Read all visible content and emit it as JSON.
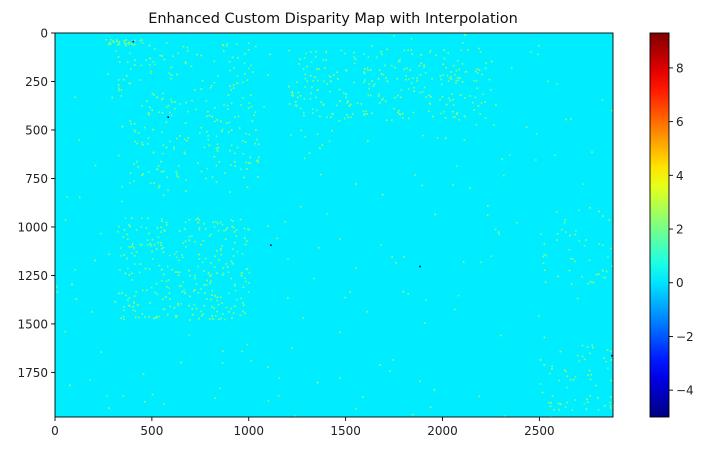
{
  "chart_data": {
    "type": "heatmap",
    "title": "Enhanced Custom Disparity Map with Interpolation",
    "xlabel": "",
    "ylabel": "",
    "x_range": [
      0,
      2880
    ],
    "y_range": [
      1980,
      0
    ],
    "x_ticks": [
      0,
      500,
      1000,
      1500,
      2000,
      2500
    ],
    "y_ticks": [
      0,
      250,
      500,
      750,
      1000,
      1250,
      1500,
      1750
    ],
    "colormap": "jet",
    "color_range": [
      -5.0,
      9.3
    ],
    "colorbar_ticks": [
      -4,
      -2,
      0,
      2,
      4,
      6,
      8
    ],
    "background_value": 0.1,
    "grid": false,
    "speckle_value": 2.2,
    "speckle_clusters": [
      {
        "region": "upper-left",
        "x": [
          320,
          1050
        ],
        "y": [
          40,
          820
        ],
        "count": 240
      },
      {
        "region": "top band left",
        "x": [
          260,
          460
        ],
        "y": [
          30,
          60
        ],
        "count": 30
      },
      {
        "region": "upper-center",
        "x": [
          1200,
          2250
        ],
        "y": [
          80,
          450
        ],
        "count": 260
      },
      {
        "region": "lower-left",
        "x": [
          320,
          1000
        ],
        "y": [
          950,
          1480
        ],
        "count": 300
      },
      {
        "region": "right edge",
        "x": [
          2480,
          2880
        ],
        "y": [
          880,
          1300
        ],
        "count": 40
      },
      {
        "region": "bottom-right",
        "x": [
          2500,
          2880
        ],
        "y": [
          1600,
          1950
        ],
        "count": 60
      },
      {
        "region": "scattered",
        "x": [
          0,
          2880
        ],
        "y": [
          0,
          1980
        ],
        "count": 220
      }
    ],
    "dark_points": [
      {
        "x": 580,
        "y": 430,
        "value": -4.5
      },
      {
        "x": 1110,
        "y": 1090,
        "value": -4.5
      },
      {
        "x": 1880,
        "y": 1200,
        "value": -4.5
      },
      {
        "x": 2870,
        "y": 1660,
        "value": -4.5
      },
      {
        "x": 400,
        "y": 40,
        "value": -4.5
      }
    ]
  }
}
